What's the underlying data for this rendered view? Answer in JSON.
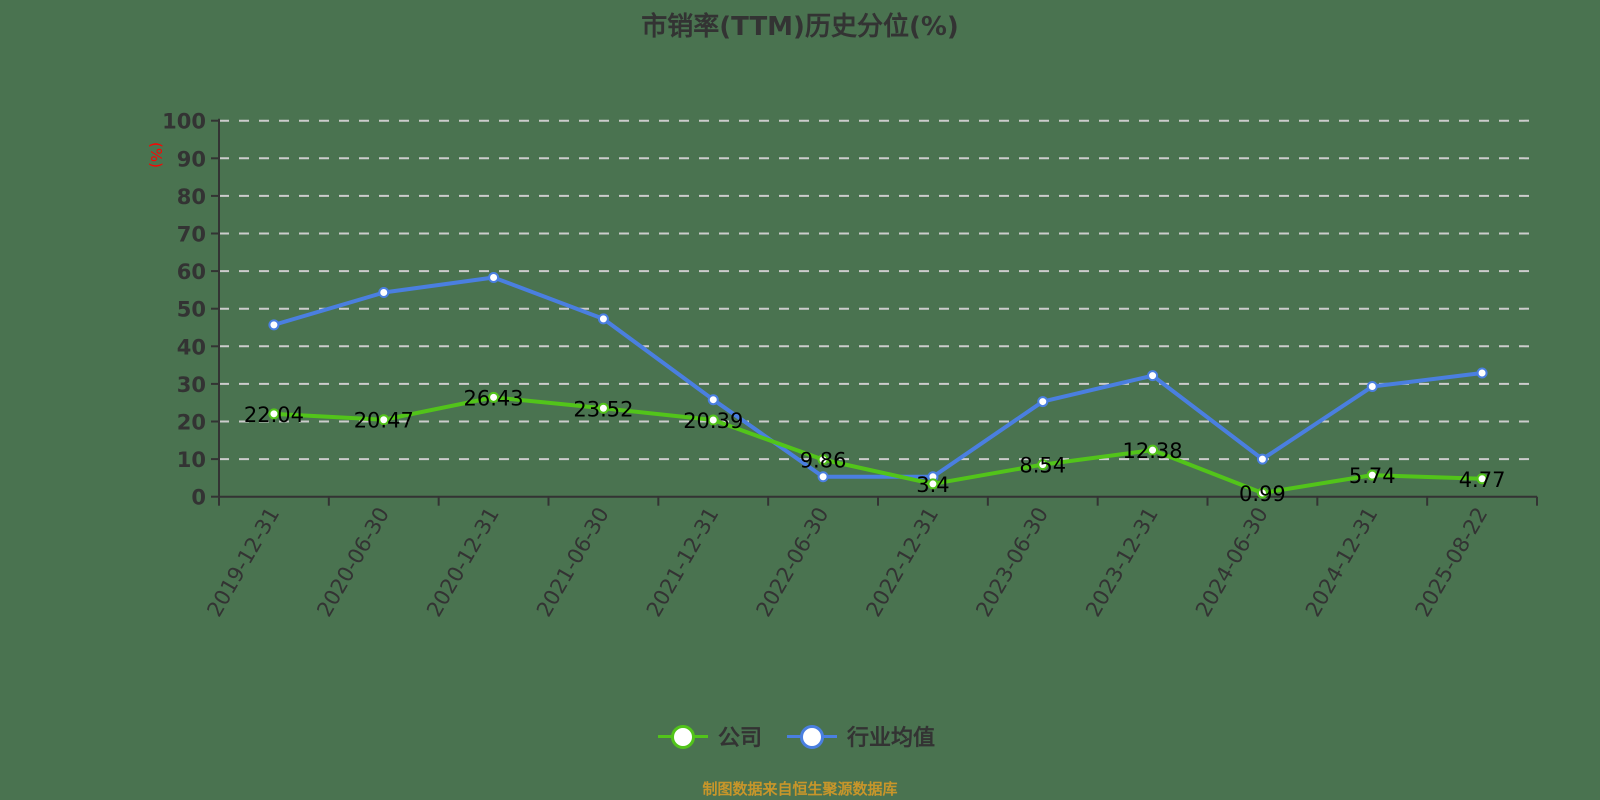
{
  "title": "市销率(TTM)历史分位(%)",
  "source_note": "制图数据来自恒生聚源数据库",
  "colors": {
    "background": "#4a7350",
    "company": "#52c41a",
    "industry": "#4a7fe0",
    "axis": "#333333",
    "grid": "#cccccc",
    "unit_label": "#ff0000",
    "source_note": "#c8962a"
  },
  "legend": {
    "items": [
      {
        "label": "公司",
        "color": "#52c41a"
      },
      {
        "label": "行业均值",
        "color": "#4a7fe0"
      }
    ]
  },
  "chart_data": {
    "type": "line",
    "title": "市销率(TTM)历史分位(%)",
    "xlabel": "",
    "ylabel": "(%)",
    "ylim": [
      0,
      100
    ],
    "yticks": [
      0,
      10,
      20,
      30,
      40,
      50,
      60,
      70,
      80,
      90,
      100
    ],
    "grid": true,
    "legend_position": "bottom",
    "categories": [
      "2019-12-31",
      "2020-06-30",
      "2020-12-31",
      "2021-06-30",
      "2021-12-31",
      "2022-06-30",
      "2022-12-31",
      "2023-06-30",
      "2023-12-31",
      "2024-06-30",
      "2024-12-31",
      "2025-08-22"
    ],
    "series": [
      {
        "name": "公司",
        "color": "#52c41a",
        "show_labels": true,
        "values": [
          22.04,
          20.47,
          26.43,
          23.52,
          20.39,
          9.86,
          3.4,
          8.54,
          12.38,
          0.99,
          5.74,
          4.77
        ]
      },
      {
        "name": "行业均值",
        "color": "#4a7fe0",
        "show_labels": false,
        "values": [
          45.7,
          54.3,
          58.3,
          47.3,
          25.8,
          5.3,
          5.3,
          25.3,
          32.2,
          10.0,
          29.3,
          32.9
        ]
      }
    ],
    "annotations": [
      "制图数据来自恒生聚源数据库"
    ]
  }
}
